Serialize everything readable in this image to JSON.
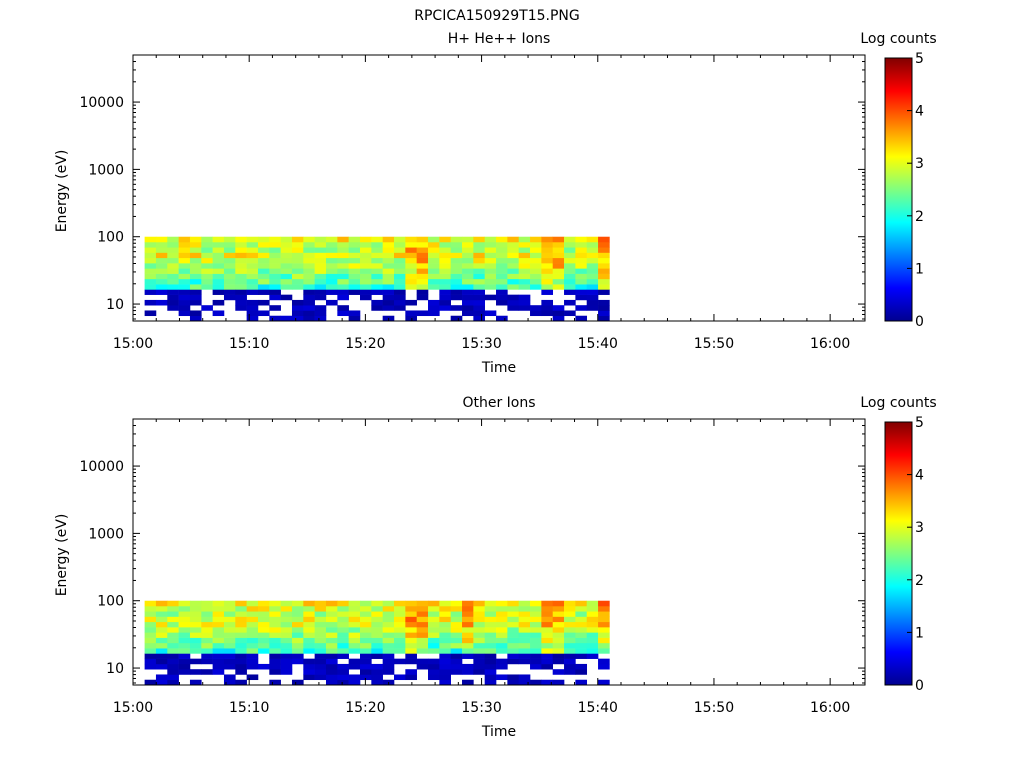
{
  "figure_title": "RPCICA150929T15.PNG",
  "chart_data": [
    {
      "type": "heatmap",
      "title": "H+ He++ Ions",
      "xlabel": "Time",
      "ylabel": "Energy (eV)",
      "xlim": [
        "15:00",
        "16:03"
      ],
      "ylim": [
        5.6,
        50000
      ],
      "yscale": "log",
      "x_ticks": [
        "15:00",
        "15:10",
        "15:20",
        "15:30",
        "15:40",
        "15:50",
        "16:00"
      ],
      "y_ticks": [
        "10",
        "100",
        "1000",
        "10000"
      ],
      "data_time_range": [
        "15:01",
        "15:41"
      ],
      "data_energy_range_eV": [
        5.6,
        100
      ],
      "colorbar": {
        "label": "Log counts",
        "range": [
          0,
          5
        ],
        "ticks": [
          "0",
          "1",
          "2",
          "3",
          "4",
          "5"
        ]
      },
      "bright_columns_min": [
        24.5,
        35.5,
        36.5,
        40.5
      ],
      "grid": false
    },
    {
      "type": "heatmap",
      "title": "Other Ions",
      "xlabel": "Time",
      "ylabel": "Energy (eV)",
      "xlim": [
        "15:00",
        "16:03"
      ],
      "ylim": [
        5.6,
        50000
      ],
      "yscale": "log",
      "x_ticks": [
        "15:00",
        "15:10",
        "15:20",
        "15:30",
        "15:40",
        "15:50",
        "16:00"
      ],
      "y_ticks": [
        "10",
        "100",
        "1000",
        "10000"
      ],
      "data_time_range": [
        "15:01",
        "15:41"
      ],
      "data_energy_range_eV": [
        5.6,
        100
      ],
      "colorbar": {
        "label": "Log counts",
        "range": [
          0,
          5
        ],
        "ticks": [
          "0",
          "1",
          "2",
          "3",
          "4",
          "5"
        ]
      },
      "bright_columns_min": [
        24.5,
        28.5,
        35.5,
        36.5,
        40.5
      ],
      "grid": false
    }
  ]
}
